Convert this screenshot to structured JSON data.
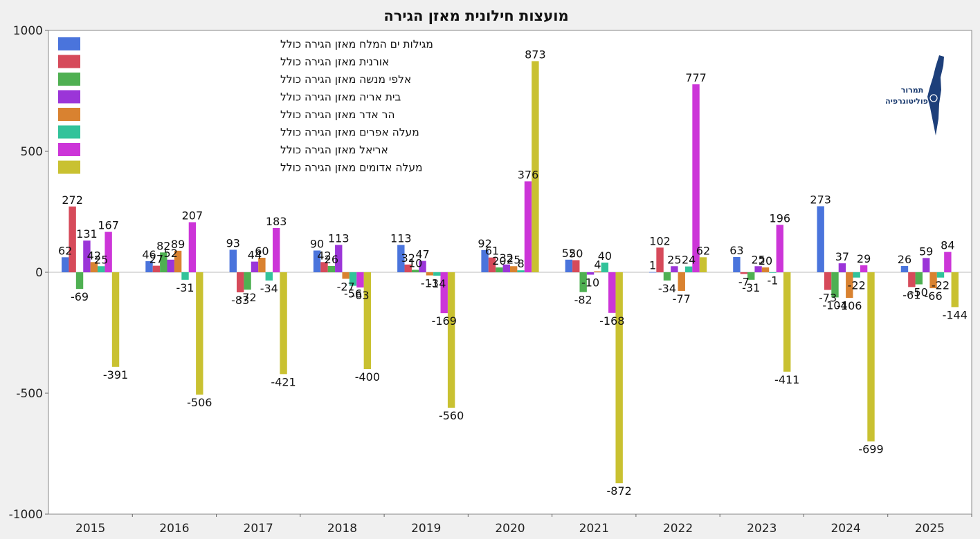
{
  "chart_data": {
    "type": "bar",
    "title": "מועצות חילונית מאזן הגירה",
    "xlabel": "",
    "ylabel": "",
    "ylim": [
      -1000,
      1000
    ],
    "yticks": [
      1000,
      500,
      0,
      -500,
      -1000
    ],
    "yticklabels": [
      "1000",
      "500",
      "0",
      "-500",
      "-1000"
    ],
    "grid": false,
    "legend_position": "top-left",
    "categories": [
      "2015",
      "2016",
      "2017",
      "2018",
      "2019",
      "2020",
      "2021",
      "2022",
      "2023",
      "2024",
      "2025"
    ],
    "series": [
      {
        "name": "מגילות ים המלח מאזן הגירה כולל",
        "color": "#4a74dc",
        "values": [
          62,
          46,
          93,
          90,
          113,
          92,
          52,
          1,
          63,
          273,
          26
        ]
      },
      {
        "name": "אורנית מאזן הגירה כולל",
        "color": "#d64a5a",
        "values": [
          272,
          27,
          -83,
          42,
          32,
          61,
          50,
          102,
          -7,
          -73,
          -61
        ]
      },
      {
        "name": "אלפי מנשה מאזן הגירה כולל",
        "color": "#4fb052",
        "values": [
          -69,
          82,
          -72,
          26,
          10,
          20,
          -82,
          -34,
          -31,
          -104,
          -50
        ]
      },
      {
        "name": "בית אריה מאזן הגירה כולל",
        "color": "#9b35d8",
        "values": [
          131,
          52,
          44,
          113,
          47,
          32,
          -10,
          25,
          25,
          37,
          59
        ]
      },
      {
        "name": "הר אדר מאזן הגירה כולל",
        "color": "#d98230",
        "values": [
          42,
          89,
          60,
          -27,
          -13,
          25,
          4,
          -77,
          20,
          -106,
          -66
        ]
      },
      {
        "name": "מעלה אפרים מאזן הגירה כולל",
        "color": "#32c39a",
        "values": [
          25,
          -31,
          -34,
          -56,
          -14,
          8,
          40,
          24,
          -1,
          -22,
          -22
        ]
      },
      {
        "name": "אריאל מאזן הגירה כולל",
        "color": "#cc35d8",
        "values": [
          167,
          207,
          183,
          -63,
          -169,
          376,
          -168,
          777,
          196,
          29,
          84
        ]
      },
      {
        "name": "מעלה אדומים מאזן הגירה כולל",
        "color": "#c9c131",
        "values": [
          -391,
          -506,
          -421,
          -400,
          -560,
          873,
          -872,
          62,
          -411,
          -699,
          -144
        ]
      }
    ]
  },
  "logo": {
    "line1": "תמרור",
    "line2": "פוליטוגרפיה",
    "icon": "israel-map-icon"
  }
}
